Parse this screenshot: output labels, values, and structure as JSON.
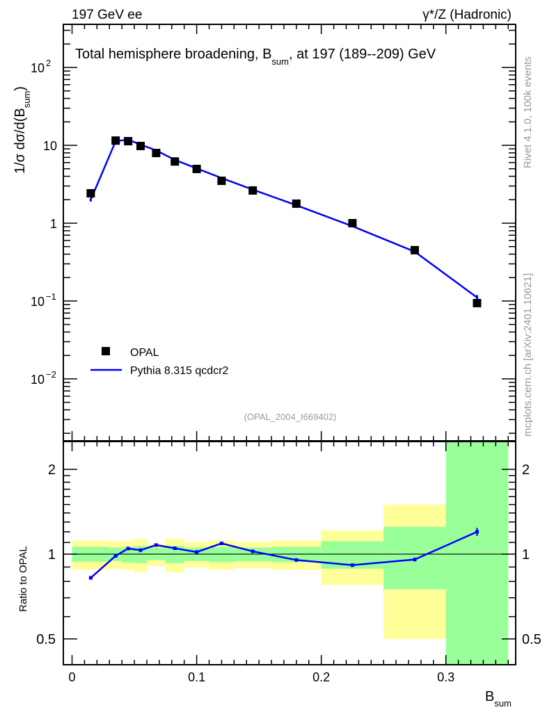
{
  "chart_data": {
    "type": "line",
    "header_left": "197 GeV ee",
    "header_right": "γ*/Z (Hadronic)",
    "title": "Total hemisphere broadening, B",
    "title_sub": "sum",
    "title_rest": ", at 197 (189--209) GeV",
    "ylabel_main": "1/σ  dσ/d(B",
    "ylabel_main_sub": "sum",
    "ylabel_main_end": ")",
    "ylabel_ratio": "Ratio to OPAL",
    "xlabel": "B",
    "xlabel_sub": "sum",
    "analysis_id": "(OPAL_2004_I669402)",
    "side_text_1": "Rivet 4.1.0,  100k events",
    "side_text_2": "mcplots.cern.ch [arXiv:2401.10621]",
    "xlim": [
      -0.007,
      0.356
    ],
    "ylim_main": [
      0.0016,
      358
    ],
    "ylim_ratio": [
      0.405,
      2.51
    ],
    "y_scale": "log",
    "ratio_scale": "log",
    "x_ticks": [
      "0",
      "0.1",
      "0.2",
      "0.3"
    ],
    "x_tick_values": [
      0,
      0.1,
      0.2,
      0.3
    ],
    "y_ticks_main": [
      {
        "value": 100,
        "base": "10",
        "exp": "2"
      },
      {
        "value": 10,
        "base": "10",
        "exp": ""
      },
      {
        "value": 1,
        "base": "1",
        "exp": ""
      },
      {
        "value": 0.1,
        "base": "10",
        "exp": "−1"
      },
      {
        "value": 0.01,
        "base": "10",
        "exp": "−2"
      }
    ],
    "y_ticks_ratio": [
      {
        "value": 2,
        "label": "2"
      },
      {
        "value": 1,
        "label": "1"
      },
      {
        "value": 0.5,
        "label": "0.5"
      }
    ],
    "legend": [
      {
        "name": "OPAL",
        "marker": "square",
        "color": "#000000"
      },
      {
        "name": "Pythia 8.315 qcdcr2",
        "marker": "line",
        "color": "#0000ff"
      }
    ],
    "legend_position": "bottom-left",
    "bins": [
      0,
      0.03,
      0.04,
      0.05,
      0.06,
      0.075,
      0.09,
      0.11,
      0.13,
      0.16,
      0.2,
      0.25,
      0.3,
      0.35
    ],
    "x": [
      0.015,
      0.035,
      0.045,
      0.055,
      0.0675,
      0.0825,
      0.1,
      0.12,
      0.145,
      0.18,
      0.225,
      0.275,
      0.325
    ],
    "series": [
      {
        "name": "OPAL",
        "values": [
          2.42,
          11.5,
          11.3,
          9.8,
          7.97,
          6.2,
          4.97,
          3.5,
          2.63,
          1.78,
          1.0,
          0.45,
          0.094
        ]
      },
      {
        "name": "Pythia 8.315 qcdcr2",
        "values": [
          2.0,
          11.3,
          11.8,
          10.2,
          8.6,
          6.5,
          5.05,
          3.8,
          2.7,
          1.7,
          0.914,
          0.43,
          0.111
        ],
        "errors": [
          0.1,
          0.15,
          0.15,
          0.12,
          0.1,
          0.08,
          0.06,
          0.05,
          0.04,
          0.03,
          0.02,
          0.015,
          0.008
        ]
      }
    ],
    "ratio": {
      "values": [
        0.824,
        0.986,
        1.047,
        1.033,
        1.077,
        1.049,
        1.017,
        1.092,
        1.023,
        0.953,
        0.914,
        0.957,
        1.2
      ],
      "errors": [
        0.012,
        0.01,
        0.01,
        0.01,
        0.01,
        0.01,
        0.01,
        0.01,
        0.01,
        0.01,
        0.012,
        0.015,
        0.04
      ],
      "band_stat_low": [
        0.94,
        0.946,
        0.934,
        0.93,
        0.953,
        0.93,
        0.946,
        0.937,
        0.943,
        0.937,
        0.888,
        0.75,
        0.3
      ],
      "band_stat_high": [
        1.061,
        1.055,
        1.061,
        1.069,
        1.055,
        1.069,
        1.055,
        1.061,
        1.055,
        1.061,
        1.111,
        1.25,
        4.0
      ],
      "band_total_low": [
        0.88,
        0.888,
        0.88,
        0.861,
        0.909,
        0.861,
        0.897,
        0.88,
        0.893,
        0.88,
        0.778,
        0.5,
        0.2
      ],
      "band_total_high": [
        1.117,
        1.111,
        1.117,
        1.134,
        1.092,
        1.134,
        1.104,
        1.121,
        1.104,
        1.117,
        1.215,
        1.5,
        5.0
      ]
    },
    "colors": {
      "data": "#000000",
      "mc": "#0000ff",
      "band_total": "#ffff99",
      "band_stat": "#99ff99"
    }
  }
}
